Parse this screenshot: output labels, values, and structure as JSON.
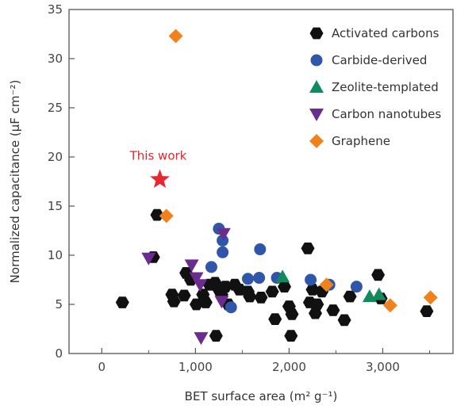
{
  "chart_data": {
    "type": "scatter",
    "xlabel": "BET surface area (m² g⁻¹)",
    "ylabel": "Normalized capacitance (μF cm⁻²)",
    "xlim": [
      -350,
      3750
    ],
    "ylim": [
      0,
      35
    ],
    "x_ticks": [
      {
        "value": 0,
        "label": "0"
      },
      {
        "value": 1000,
        "label": "1,000"
      },
      {
        "value": 2000,
        "label": "2,000"
      },
      {
        "value": 3000,
        "label": "3,000"
      }
    ],
    "x_minor_ticks": [
      500,
      1500,
      2500,
      3500
    ],
    "y_ticks": [
      {
        "value": 0,
        "label": "0"
      },
      {
        "value": 5,
        "label": "5"
      },
      {
        "value": 10,
        "label": "10"
      },
      {
        "value": 15,
        "label": "15"
      },
      {
        "value": 20,
        "label": "20"
      },
      {
        "value": 25,
        "label": "25"
      },
      {
        "value": 30,
        "label": "30"
      },
      {
        "value": 35,
        "label": "35"
      }
    ],
    "grid": false,
    "legend_position": "top-right",
    "series": [
      {
        "name": "Activated carbons",
        "marker": "hexagon",
        "color": "#111111",
        "points": [
          {
            "x": 220,
            "y": 5.2
          },
          {
            "x": 550,
            "y": 9.8
          },
          {
            "x": 590,
            "y": 14.1
          },
          {
            "x": 750,
            "y": 6.0
          },
          {
            "x": 770,
            "y": 5.3
          },
          {
            "x": 880,
            "y": 5.9
          },
          {
            "x": 900,
            "y": 8.2
          },
          {
            "x": 950,
            "y": 7.5
          },
          {
            "x": 1010,
            "y": 5.0
          },
          {
            "x": 1080,
            "y": 6.0
          },
          {
            "x": 1110,
            "y": 5.2
          },
          {
            "x": 1150,
            "y": 7.0
          },
          {
            "x": 1210,
            "y": 7.2
          },
          {
            "x": 1220,
            "y": 1.8
          },
          {
            "x": 1250,
            "y": 6.5
          },
          {
            "x": 1280,
            "y": 6.0
          },
          {
            "x": 1320,
            "y": 6.8
          },
          {
            "x": 1350,
            "y": 5.0
          },
          {
            "x": 1420,
            "y": 7.0
          },
          {
            "x": 1470,
            "y": 6.5
          },
          {
            "x": 1560,
            "y": 6.3
          },
          {
            "x": 1580,
            "y": 5.8
          },
          {
            "x": 1700,
            "y": 5.7
          },
          {
            "x": 1820,
            "y": 6.3
          },
          {
            "x": 1850,
            "y": 3.5
          },
          {
            "x": 1950,
            "y": 6.8
          },
          {
            "x": 2000,
            "y": 4.8
          },
          {
            "x": 2020,
            "y": 1.8
          },
          {
            "x": 2030,
            "y": 4.0
          },
          {
            "x": 2200,
            "y": 10.7
          },
          {
            "x": 2220,
            "y": 5.2
          },
          {
            "x": 2250,
            "y": 6.5
          },
          {
            "x": 2280,
            "y": 4.1
          },
          {
            "x": 2300,
            "y": 5.0
          },
          {
            "x": 2350,
            "y": 6.3
          },
          {
            "x": 2470,
            "y": 4.4
          },
          {
            "x": 2590,
            "y": 3.4
          },
          {
            "x": 2650,
            "y": 5.8
          },
          {
            "x": 2950,
            "y": 8.0
          },
          {
            "x": 2980,
            "y": 5.6
          },
          {
            "x": 3470,
            "y": 4.3
          }
        ]
      },
      {
        "name": "Carbide-derived",
        "marker": "circle",
        "color": "#2f56a8",
        "points": [
          {
            "x": 1170,
            "y": 8.8
          },
          {
            "x": 1250,
            "y": 12.7
          },
          {
            "x": 1290,
            "y": 11.5
          },
          {
            "x": 1290,
            "y": 10.3
          },
          {
            "x": 1380,
            "y": 4.7
          },
          {
            "x": 1560,
            "y": 7.6
          },
          {
            "x": 1680,
            "y": 7.7
          },
          {
            "x": 1690,
            "y": 10.6
          },
          {
            "x": 1870,
            "y": 7.7
          },
          {
            "x": 2230,
            "y": 7.5
          },
          {
            "x": 2430,
            "y": 7.0
          },
          {
            "x": 2720,
            "y": 6.8
          }
        ]
      },
      {
        "name": "Zeolite-templated",
        "marker": "triangle-up",
        "color": "#138a5e",
        "points": [
          {
            "x": 1930,
            "y": 7.8
          },
          {
            "x": 2860,
            "y": 5.8
          },
          {
            "x": 2960,
            "y": 6.0
          }
        ]
      },
      {
        "name": "Carbon nanotubes",
        "marker": "triangle-down",
        "color": "#6a2c8e",
        "points": [
          {
            "x": 500,
            "y": 9.7
          },
          {
            "x": 960,
            "y": 9.0
          },
          {
            "x": 1010,
            "y": 7.7
          },
          {
            "x": 1050,
            "y": 7.0
          },
          {
            "x": 1060,
            "y": 1.6
          },
          {
            "x": 1280,
            "y": 5.3
          },
          {
            "x": 1300,
            "y": 12.2
          }
        ]
      },
      {
        "name": "Graphene",
        "marker": "diamond",
        "color": "#f0821e",
        "points": [
          {
            "x": 790,
            "y": 32.3
          },
          {
            "x": 690,
            "y": 14.0
          },
          {
            "x": 2400,
            "y": 7.0
          },
          {
            "x": 3080,
            "y": 4.9
          },
          {
            "x": 3510,
            "y": 5.7
          }
        ]
      }
    ],
    "annotation": {
      "label": "This work",
      "x": 620,
      "y": 17.7,
      "marker": "star",
      "color": "#e8262f"
    }
  }
}
